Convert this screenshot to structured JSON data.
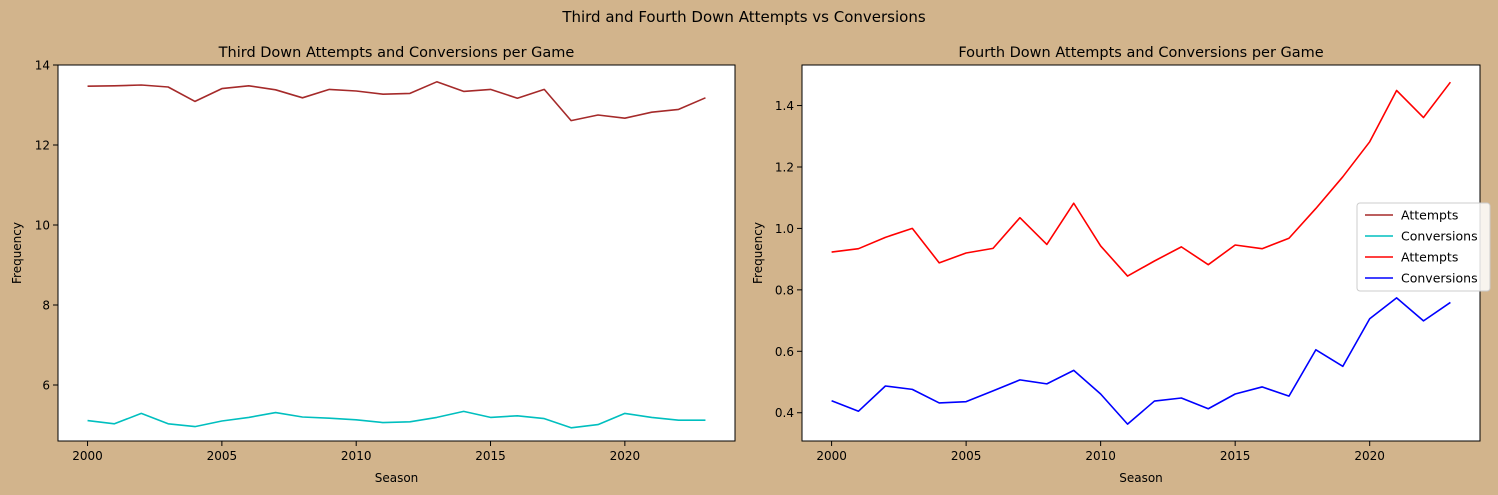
{
  "figure": {
    "suptitle": "Third and Fourth Down Attempts vs Conversions",
    "background": "#d2b48c"
  },
  "chart_data": [
    {
      "type": "line",
      "title": "Third Down Attempts and Conversions per Game",
      "xlabel": "Season",
      "ylabel": "Frequency",
      "xlim": [
        1998.9,
        2024.1
      ],
      "ylim": [
        4.6,
        14.0
      ],
      "xticks": [
        2000,
        2005,
        2010,
        2015,
        2020
      ],
      "yticks": [
        6,
        8,
        10,
        12,
        14
      ],
      "legend": null,
      "x": [
        2000,
        2001,
        2002,
        2003,
        2004,
        2005,
        2006,
        2007,
        2008,
        2009,
        2010,
        2011,
        2012,
        2013,
        2014,
        2015,
        2016,
        2017,
        2018,
        2019,
        2020,
        2021,
        2022,
        2023
      ],
      "series": [
        {
          "name": "Attempts",
          "color": "#a52a2a",
          "values": [
            13.47,
            13.48,
            13.5,
            13.45,
            13.09,
            13.41,
            13.48,
            13.38,
            13.18,
            13.39,
            13.35,
            13.27,
            13.29,
            13.58,
            13.34,
            13.39,
            13.17,
            13.39,
            12.61,
            12.75,
            12.67,
            12.82,
            12.89,
            13.18
          ]
        },
        {
          "name": "Conversions",
          "color": "#00bfbf",
          "values": [
            5.11,
            5.03,
            5.29,
            5.03,
            4.96,
            5.1,
            5.19,
            5.31,
            5.2,
            5.17,
            5.13,
            5.06,
            5.08,
            5.19,
            5.34,
            5.19,
            5.23,
            5.16,
            4.93,
            5.01,
            5.29,
            5.19,
            5.12,
            5.12
          ]
        }
      ]
    },
    {
      "type": "line",
      "title": "Fourth Down Attempts and Conversions per Game",
      "xlabel": "Season",
      "ylabel": "Frequency",
      "xlim": [
        1998.9,
        2024.1
      ],
      "ylim": [
        0.308,
        1.532
      ],
      "xticks": [
        2000,
        2005,
        2010,
        2015,
        2020
      ],
      "yticks": [
        0.4,
        0.6,
        0.8,
        1.0,
        1.2,
        1.4
      ],
      "ytick_labels": [
        "0.4",
        "0.6",
        "0.8",
        "1.0",
        "1.2",
        "1.4"
      ],
      "legend": {
        "placement": "center-right",
        "entries": [
          {
            "label": "Attempts",
            "color": "#a52a2a"
          },
          {
            "label": "Conversions",
            "color": "#00bfbf"
          },
          {
            "label": "Attempts",
            "color": "#ff0000"
          },
          {
            "label": "Conversions",
            "color": "#0000ff"
          }
        ]
      },
      "x": [
        2000,
        2001,
        2002,
        2003,
        2004,
        2005,
        2006,
        2007,
        2008,
        2009,
        2010,
        2011,
        2012,
        2013,
        2014,
        2015,
        2016,
        2017,
        2018,
        2019,
        2020,
        2021,
        2022,
        2023
      ],
      "series": [
        {
          "name": "Attempts",
          "color": "#ff0000",
          "values": [
            0.923,
            0.934,
            0.971,
            1.0,
            0.888,
            0.92,
            0.935,
            1.035,
            0.948,
            1.082,
            0.943,
            0.845,
            0.894,
            0.94,
            0.882,
            0.946,
            0.934,
            0.968,
            1.065,
            1.168,
            1.282,
            1.449,
            1.361,
            1.476
          ]
        },
        {
          "name": "Conversions",
          "color": "#0000ff",
          "values": [
            0.439,
            0.405,
            0.487,
            0.476,
            0.432,
            0.436,
            0.471,
            0.507,
            0.494,
            0.538,
            0.461,
            0.363,
            0.438,
            0.448,
            0.413,
            0.461,
            0.484,
            0.454,
            0.605,
            0.551,
            0.706,
            0.774,
            0.699,
            0.759
          ]
        }
      ]
    }
  ]
}
